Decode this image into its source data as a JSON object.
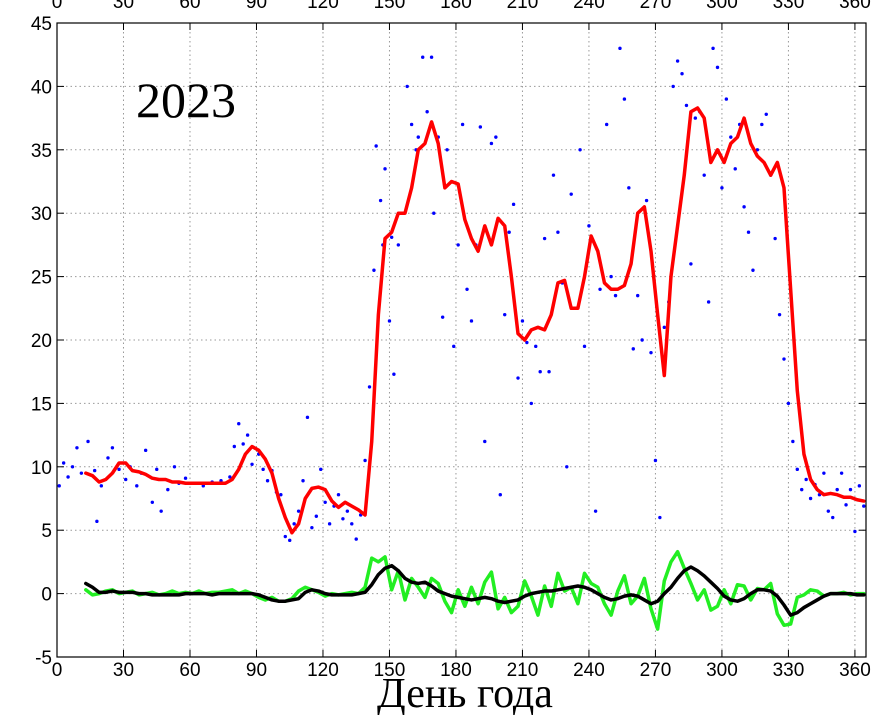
{
  "chart_data": {
    "type": "line",
    "annotation": "2023",
    "xlabel": "День года",
    "xlim": [
      0,
      365
    ],
    "ylim": [
      -5,
      45
    ],
    "xticks": [
      0,
      30,
      60,
      90,
      120,
      150,
      180,
      210,
      240,
      270,
      300,
      330,
      360
    ],
    "yticks": [
      -5,
      0,
      5,
      10,
      15,
      20,
      25,
      30,
      35,
      40,
      45
    ],
    "grid": true,
    "x": [
      13,
      16,
      19,
      22,
      25,
      28,
      31,
      34,
      37,
      40,
      43,
      46,
      49,
      52,
      55,
      58,
      61,
      64,
      67,
      70,
      73,
      76,
      79,
      82,
      85,
      88,
      91,
      94,
      97,
      100,
      103,
      106,
      109,
      112,
      115,
      118,
      121,
      124,
      127,
      130,
      133,
      136,
      139,
      142,
      145,
      148,
      151,
      154,
      157,
      160,
      163,
      166,
      169,
      172,
      175,
      178,
      181,
      184,
      187,
      190,
      193,
      196,
      199,
      202,
      205,
      208,
      211,
      214,
      217,
      220,
      223,
      226,
      229,
      232,
      235,
      238,
      241,
      244,
      247,
      250,
      253,
      256,
      259,
      262,
      265,
      268,
      271,
      274,
      277,
      280,
      283,
      286,
      289,
      292,
      295,
      298,
      301,
      304,
      307,
      310,
      313,
      316,
      319,
      322,
      325,
      328,
      331,
      334,
      337,
      340,
      343,
      346,
      349,
      352,
      355,
      358,
      361,
      364
    ],
    "series": [
      {
        "color": "#0000ff",
        "type": "scatter",
        "x": [
          1,
          3,
          5,
          7,
          9,
          11,
          14,
          17,
          18,
          20,
          23,
          25,
          28,
          31,
          33,
          36,
          38,
          40,
          43,
          45,
          47,
          50,
          53,
          55,
          58,
          62,
          66,
          70,
          74,
          78,
          80,
          82,
          84,
          86,
          88,
          91,
          93,
          95,
          97,
          99,
          101,
          103,
          105,
          107,
          109,
          111,
          113,
          115,
          117,
          119,
          121,
          123,
          125,
          127,
          129,
          131,
          133,
          135,
          137,
          139,
          141,
          143,
          144,
          146,
          147,
          148,
          150,
          151,
          152,
          154,
          156,
          158,
          160,
          162,
          163,
          165,
          167,
          169,
          170,
          172,
          174,
          176,
          179,
          181,
          183,
          185,
          187,
          189,
          191,
          193,
          196,
          198,
          200,
          202,
          204,
          206,
          208,
          210,
          212,
          214,
          216,
          218,
          220,
          222,
          224,
          226,
          228,
          230,
          232,
          234,
          236,
          238,
          240,
          243,
          245,
          248,
          250,
          252,
          254,
          256,
          258,
          260,
          262,
          264,
          266,
          268,
          270,
          272,
          274,
          276,
          278,
          280,
          282,
          284,
          286,
          288,
          290,
          292,
          294,
          296,
          298,
          300,
          302,
          304,
          306,
          308,
          310,
          312,
          314,
          316,
          318,
          320,
          322,
          324,
          326,
          328,
          330,
          332,
          334,
          336,
          338,
          340,
          342,
          344,
          346,
          348,
          350,
          352,
          354,
          356,
          358,
          360,
          362,
          364
        ],
        "values": [
          8.5,
          10.3,
          9.2,
          10,
          11.5,
          9.5,
          12,
          9.7,
          5.7,
          8.5,
          10.7,
          11.5,
          9.8,
          9,
          10,
          8.5,
          9.5,
          11.3,
          7.2,
          9.8,
          6.5,
          8.2,
          10,
          8.7,
          9.1,
          8.7,
          8.5,
          8.8,
          8.9,
          9.2,
          11.6,
          13.4,
          11.8,
          12.5,
          10.2,
          11,
          9.8,
          8.9,
          9.7,
          8,
          7.8,
          4.5,
          4.2,
          5.5,
          6.5,
          8.9,
          13.9,
          5.2,
          6.1,
          9.8,
          7.2,
          5.5,
          6.9,
          7.8,
          5.9,
          6.5,
          5.5,
          4.3,
          6.2,
          10.5,
          16.3,
          25.5,
          35.3,
          31,
          27.5,
          33.5,
          21.5,
          28.1,
          17.3,
          27.5,
          30,
          40,
          37,
          35,
          36,
          42.3,
          38,
          42.3,
          30,
          36,
          21.8,
          35,
          19.5,
          27.5,
          37,
          24,
          21.5,
          27.5,
          36.8,
          12,
          35.5,
          36,
          7.8,
          22,
          28.5,
          30.7,
          17,
          21.5,
          19.8,
          15,
          19.5,
          17.5,
          28,
          17.5,
          33,
          28.5,
          24.5,
          10,
          31.5,
          22.5,
          35,
          19.5,
          29,
          6.5,
          24,
          37,
          25,
          23.5,
          43,
          39,
          32,
          19.3,
          23.5,
          20,
          31,
          19,
          10.5,
          6,
          21,
          23,
          40,
          42,
          41,
          38.5,
          26,
          37.5,
          38,
          33,
          23,
          43,
          41.5,
          32,
          39,
          36,
          33.5,
          37,
          30.5,
          28.5,
          25.5,
          35,
          37,
          37.8,
          33,
          28,
          22,
          18.5,
          15,
          12,
          9.8,
          8.2,
          9,
          7.5,
          8.6,
          7.8,
          9.5,
          6.5,
          6,
          8.2,
          9.5,
          7,
          8.2,
          4.9,
          8.5,
          6.9
        ]
      },
      {
        "color": "#ff0000",
        "values": [
          9.5,
          9.3,
          8.8,
          9.0,
          9.5,
          10.3,
          10.3,
          9.7,
          9.6,
          9.4,
          9.1,
          9.0,
          9.0,
          8.8,
          8.8,
          8.7,
          8.7,
          8.7,
          8.7,
          8.7,
          8.7,
          8.7,
          9.0,
          9.8,
          11.0,
          11.6,
          11.3,
          10.6,
          9.5,
          7.5,
          6.0,
          4.8,
          5.5,
          7.5,
          8.3,
          8.4,
          8.2,
          7.3,
          6.8,
          7.2,
          6.9,
          6.6,
          6.2,
          12,
          22,
          28,
          28.5,
          30,
          30,
          32,
          35,
          35.5,
          37.2,
          35.5,
          32,
          32.5,
          32.3,
          29.5,
          28,
          27,
          29,
          27.5,
          29.6,
          29,
          25,
          20.5,
          20,
          20.8,
          21,
          20.8,
          22,
          24.5,
          24.7,
          22.5,
          22.5,
          25,
          28.2,
          27,
          24.5,
          24,
          24,
          24.3,
          26,
          30,
          30.5,
          27,
          22,
          17.2,
          25,
          29,
          33,
          38,
          38.3,
          37.5,
          34,
          35,
          34,
          35.5,
          36,
          37.5,
          35.5,
          34.5,
          34,
          33,
          34,
          32,
          24,
          16,
          11,
          9,
          8.2,
          7.8,
          7.9,
          7.8,
          7.6,
          7.6,
          7.4,
          7.3
        ]
      },
      {
        "color": "#22ee22",
        "values": [
          0.3,
          -0.1,
          0.0,
          0.2,
          0.3,
          0.0,
          0.1,
          0.2,
          -0.1,
          0.0,
          0.1,
          -0.1,
          0.0,
          0.2,
          0.0,
          0.1,
          0.0,
          0.2,
          0.0,
          0.1,
          0.1,
          0.2,
          0.3,
          0.0,
          0.2,
          0.0,
          -0.3,
          -0.5,
          -0.3,
          -0.6,
          -0.6,
          -0.4,
          0.2,
          0.5,
          0.3,
          0.1,
          -0.2,
          0.0,
          -0.1,
          0.0,
          0.1,
          0.0,
          0.5,
          2.8,
          2.5,
          2.9,
          0.3,
          1.8,
          -0.5,
          1.2,
          0.5,
          -0.3,
          1.2,
          0.8,
          -0.6,
          -1.5,
          0.3,
          -1.0,
          0.5,
          -0.8,
          0.9,
          1.7,
          -1.2,
          -0.3,
          -1.5,
          -1.0,
          1.0,
          -0.2,
          -1.7,
          0.6,
          -1.0,
          1.6,
          0.2,
          0.5,
          -0.8,
          1.6,
          0.8,
          0.5,
          -0.8,
          -1.7,
          0.2,
          1.4,
          -0.8,
          -0.2,
          1.2,
          -1.2,
          -2.8,
          1.0,
          2.5,
          3.3,
          2.0,
          0.8,
          -0.5,
          0.3,
          -1.3,
          -1.0,
          0.3,
          -0.8,
          0.7,
          0.6,
          -0.5,
          0.4,
          0.3,
          0.8,
          -1.6,
          -2.5,
          -2.4,
          -0.3,
          -0.1,
          0.3,
          0.2,
          -0.2,
          0.0,
          0.0,
          0.1,
          -0.1,
          0.0,
          0.0
        ]
      },
      {
        "color": "#000000",
        "values": [
          0.8,
          0.5,
          0.1,
          0.1,
          0.2,
          0.1,
          0.1,
          0.1,
          0.0,
          0.0,
          -0.1,
          -0.1,
          -0.1,
          -0.1,
          -0.1,
          0.0,
          0.0,
          0.0,
          0.0,
          -0.1,
          0.0,
          0.0,
          0.0,
          0.0,
          0.0,
          0.0,
          -0.1,
          -0.3,
          -0.5,
          -0.6,
          -0.6,
          -0.5,
          -0.4,
          0.1,
          0.3,
          0.2,
          0.0,
          -0.1,
          -0.1,
          -0.1,
          -0.1,
          0.0,
          0.1,
          0.7,
          1.5,
          2.0,
          2.2,
          1.8,
          1.2,
          0.9,
          0.8,
          0.9,
          0.6,
          0.2,
          0.0,
          -0.2,
          -0.3,
          -0.4,
          -0.5,
          -0.4,
          -0.3,
          -0.4,
          -0.6,
          -0.7,
          -0.6,
          -0.5,
          -0.2,
          0.0,
          0.1,
          0.2,
          0.2,
          0.3,
          0.4,
          0.5,
          0.6,
          0.5,
          0.3,
          0.0,
          -0.3,
          -0.5,
          -0.4,
          -0.2,
          -0.1,
          -0.2,
          -0.5,
          -0.8,
          -0.6,
          0.0,
          0.5,
          1.2,
          1.8,
          2.1,
          1.8,
          1.4,
          0.9,
          0.4,
          -0.2,
          -0.5,
          -0.6,
          -0.4,
          0.0,
          0.3,
          0.3,
          0.2,
          -0.2,
          -0.9,
          -1.7,
          -1.5,
          -1.1,
          -0.8,
          -0.5,
          -0.2,
          0.0,
          0.0,
          0.0,
          0.0,
          -0.1,
          -0.1
        ]
      }
    ]
  }
}
